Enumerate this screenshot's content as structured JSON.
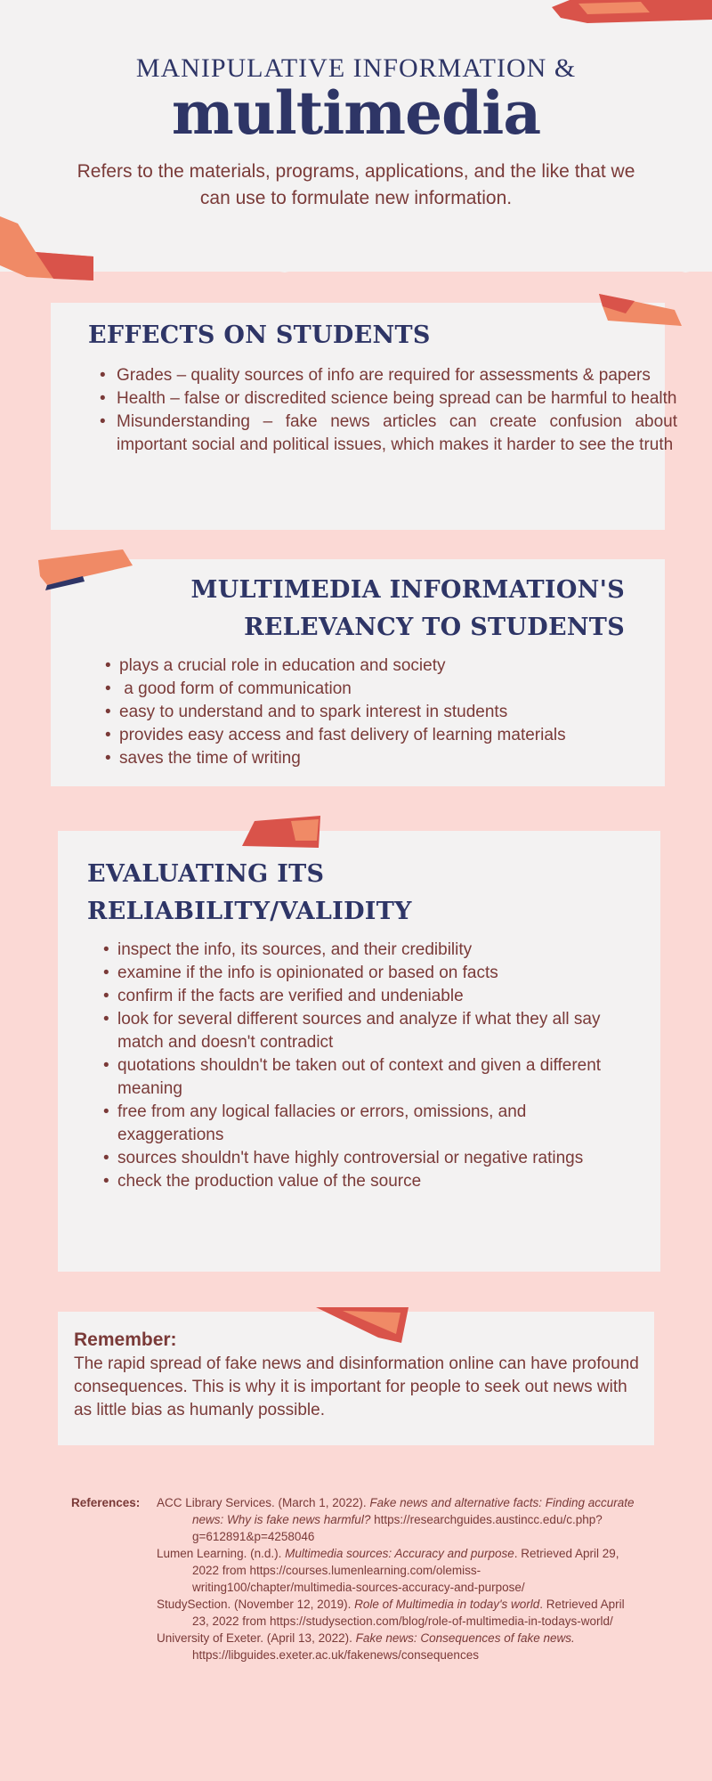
{
  "header": {
    "kicker": "MANIPULATIVE INFORMATION &",
    "title": "multimedia",
    "subtitle": "Refers to the materials, programs, applications, and the like that we can use to formulate new information."
  },
  "effects": {
    "heading": "EFFECTS ON STUDENTS",
    "items": [
      "Grades – quality sources of info are required for assessments & papers",
      "Health – false or discredited science being spread can be harmful to health",
      "Misunderstanding – fake news articles can create confusion about important social and political issues, which makes it harder to see the truth"
    ]
  },
  "relevancy": {
    "heading_line1": "MULTIMEDIA INFORMATION'S",
    "heading_line2": "RELEVANCY TO STUDENTS",
    "items": [
      "plays a crucial role in education and society",
      " a good form of communication",
      "easy to understand and to spark interest in students",
      "provides easy access and fast delivery of learning materials",
      "saves the time of writing"
    ]
  },
  "evaluating": {
    "heading_line1": "EVALUATING ITS",
    "heading_line2": "RELIABILITY/VALIDITY",
    "items": [
      "inspect the info, its sources, and their credibility",
      "examine if the info is opinionated or based on facts",
      "confirm if the facts are verified and undeniable",
      "look for several different sources and analyze if what they all say match and doesn't contradict",
      "quotations shouldn't be taken out of context and given a different meaning",
      "free from any logical fallacies or errors, omissions, and exaggerations",
      "sources shouldn't have highly controversial or negative ratings",
      "check the production value of the source"
    ]
  },
  "remember": {
    "heading": "Remember:",
    "body": "The rapid spread of fake news and disinformation online can have profound consequences. This is why it is important for people to seek out news with as little bias as humanly possible."
  },
  "references": {
    "label": "References:",
    "entries": [
      {
        "lead": "ACC Library Services. (March 1, 2022). ",
        "title": "Fake news and alternative facts: Finding accurate news: Why is fake news harmful?",
        "tail": " https://researchguides.austincc.edu/c.php?g=612891&p=4258046"
      },
      {
        "lead": "Lumen Learning. (n.d.). ",
        "title": "Multimedia sources: Accuracy and purpose",
        "tail": ". Retrieved April 29, 2022 from https://courses.lumenlearning.com/olemiss-writing100/chapter/multimedia-sources-accuracy-and-purpose/"
      },
      {
        "lead": "StudySection. (November 12, 2019). ",
        "title": "Role of Multimedia in today's world",
        "tail": ". Retrieved April 23, 2022 from https://studysection.com/blog/role-of-multimedia-in-todays-world/"
      },
      {
        "lead": "University of Exeter. (April 13, 2022). ",
        "title": "Fake news: Consequences of fake news.",
        "tail": " https://libguides.exeter.ac.uk/fakenews/consequences"
      }
    ]
  },
  "colors": {
    "background": "#fbd9d5",
    "paper": "#f3f2f2",
    "heading_navy": "#2e3566",
    "body_maroon": "#7a3a38",
    "tape_red": "#d9534a",
    "tape_orange": "#f08a66"
  }
}
